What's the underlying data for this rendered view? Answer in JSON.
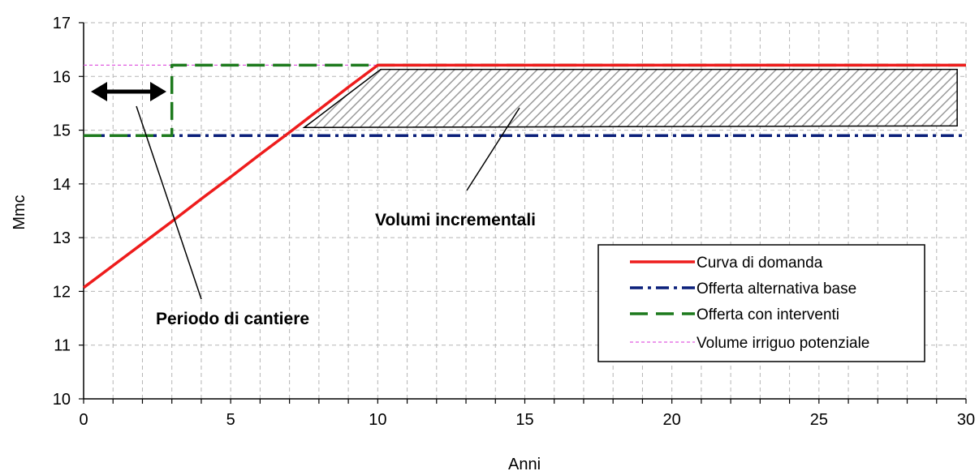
{
  "chart_data": {
    "type": "line",
    "xlabel": "Anni",
    "ylabel": "Mmc",
    "xlim": [
      0,
      30
    ],
    "ylim": [
      10,
      17
    ],
    "xticks": [
      0,
      5,
      10,
      15,
      20,
      25,
      30
    ],
    "yticks": [
      10,
      11,
      12,
      13,
      14,
      15,
      16,
      17
    ],
    "grid": "dashed",
    "legend_position": "bottom-right",
    "series": [
      {
        "name": "Curva di domanda",
        "color": "#ee1c1c",
        "style": "solid",
        "x": [
          0,
          1,
          2,
          3,
          4,
          5,
          6,
          7,
          8,
          9,
          10,
          30
        ],
        "y": [
          12.07,
          12.48,
          12.89,
          13.3,
          13.72,
          14.13,
          14.55,
          14.96,
          15.38,
          15.8,
          16.21,
          16.21
        ]
      },
      {
        "name": "Offerta alternativa base",
        "color": "#0a1f7a",
        "style": "dashdot",
        "x": [
          0,
          30
        ],
        "y": [
          14.9,
          14.9
        ]
      },
      {
        "name": "Offerta con interventi",
        "color": "#1d7a1d",
        "style": "dashed",
        "x": [
          0,
          3,
          3,
          30
        ],
        "y": [
          14.9,
          14.9,
          16.21,
          16.21
        ]
      },
      {
        "name": "Volume irriguo potenziale",
        "color": "#e05ae0",
        "style": "dotted",
        "x": [
          0,
          30
        ],
        "y": [
          16.21,
          16.21
        ]
      }
    ],
    "shaded_region": {
      "x": [
        7.5,
        10.1,
        29.7,
        29.7
      ],
      "y": [
        15.05,
        16.13,
        16.13,
        15.08
      ]
    },
    "annotations": [
      {
        "text": "Volumi incrementali"
      },
      {
        "text": "Periodo di cantiere"
      }
    ]
  }
}
